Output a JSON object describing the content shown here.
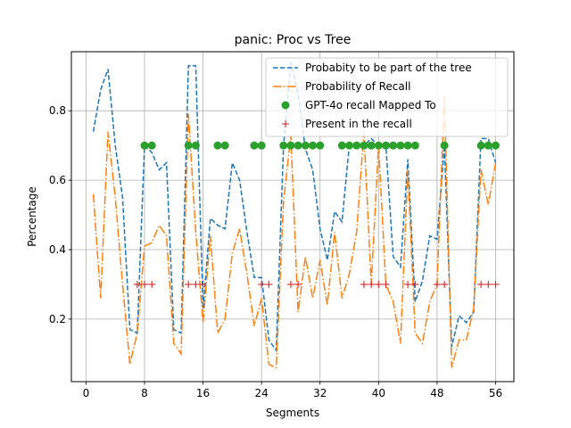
{
  "chart_data": {
    "type": "line",
    "title": "panic: Proc vs Tree",
    "xlabel": "Segments",
    "ylabel": "Percentage",
    "xlim": [
      -2,
      58.5
    ],
    "ylim": [
      0.02,
      0.97
    ],
    "xticks": [
      0,
      8,
      16,
      24,
      32,
      40,
      48,
      56
    ],
    "yticks": [
      0.2,
      0.4,
      0.6,
      0.8
    ],
    "grid": true,
    "legend_position": "upper-right",
    "series": [
      {
        "name": "Probabity to be part of the tree",
        "style": "dashed",
        "color": "#1f77b4",
        "x": [
          1,
          2,
          3,
          4,
          5,
          6,
          7,
          8,
          9,
          10,
          11,
          12,
          13,
          14,
          15,
          16,
          17,
          18,
          19,
          20,
          21,
          22,
          23,
          24,
          25,
          26,
          27,
          28,
          29,
          30,
          31,
          32,
          33,
          34,
          35,
          36,
          37,
          38,
          39,
          40,
          41,
          42,
          43,
          44,
          45,
          46,
          47,
          48,
          49,
          50,
          51,
          52,
          53,
          54,
          55,
          56
        ],
        "y": [
          0.74,
          0.86,
          0.92,
          0.7,
          0.55,
          0.17,
          0.16,
          0.7,
          0.68,
          0.63,
          0.65,
          0.17,
          0.16,
          0.93,
          0.93,
          0.23,
          0.49,
          0.47,
          0.46,
          0.65,
          0.6,
          0.45,
          0.32,
          0.32,
          0.14,
          0.11,
          0.7,
          0.94,
          0.85,
          0.69,
          0.63,
          0.46,
          0.37,
          0.51,
          0.48,
          0.7,
          0.7,
          0.7,
          0.72,
          0.7,
          0.7,
          0.38,
          0.35,
          0.66,
          0.25,
          0.31,
          0.44,
          0.43,
          0.7,
          0.12,
          0.21,
          0.19,
          0.22,
          0.72,
          0.72,
          0.65
        ]
      },
      {
        "name": "Probability of Recall",
        "style": "dashdot",
        "color": "#ff7f0e",
        "x": [
          1,
          2,
          3,
          4,
          5,
          6,
          7,
          8,
          9,
          10,
          11,
          12,
          13,
          14,
          15,
          16,
          17,
          18,
          19,
          20,
          21,
          22,
          23,
          24,
          25,
          26,
          27,
          28,
          29,
          30,
          31,
          32,
          33,
          34,
          35,
          36,
          37,
          38,
          39,
          40,
          41,
          42,
          43,
          44,
          45,
          46,
          47,
          48,
          49,
          50,
          51,
          52,
          53,
          54,
          55,
          56
        ],
        "y": [
          0.56,
          0.26,
          0.74,
          0.55,
          0.3,
          0.07,
          0.16,
          0.41,
          0.42,
          0.47,
          0.44,
          0.13,
          0.1,
          0.79,
          0.45,
          0.19,
          0.44,
          0.16,
          0.2,
          0.39,
          0.46,
          0.33,
          0.18,
          0.26,
          0.07,
          0.06,
          0.54,
          0.73,
          0.22,
          0.38,
          0.26,
          0.37,
          0.24,
          0.45,
          0.26,
          0.33,
          0.45,
          0.74,
          0.3,
          0.7,
          0.3,
          0.25,
          0.13,
          0.63,
          0.16,
          0.13,
          0.25,
          0.3,
          0.84,
          0.06,
          0.14,
          0.14,
          0.23,
          0.63,
          0.53,
          0.65
        ]
      },
      {
        "name": "GPT-4o recall Mapped To",
        "style": "marker-circle",
        "color": "#2ca02c",
        "x": [
          8,
          9,
          14,
          15,
          18,
          19,
          23,
          24,
          27,
          28,
          29,
          30,
          31,
          32,
          35,
          36,
          37,
          38,
          39,
          40,
          41,
          42,
          43,
          44,
          45,
          49,
          54,
          55,
          56
        ],
        "y": [
          0.7,
          0.7,
          0.7,
          0.7,
          0.7,
          0.7,
          0.7,
          0.7,
          0.7,
          0.7,
          0.7,
          0.7,
          0.7,
          0.7,
          0.7,
          0.7,
          0.7,
          0.7,
          0.7,
          0.7,
          0.7,
          0.7,
          0.7,
          0.7,
          0.7,
          0.7,
          0.7,
          0.7,
          0.7
        ]
      },
      {
        "name": "Present in the recall",
        "style": "marker-plus",
        "color": "#d62728",
        "x": [
          7,
          8,
          9,
          14,
          15,
          16,
          24,
          25,
          28,
          29,
          38,
          39,
          40,
          41,
          44,
          45,
          48,
          49,
          54,
          55,
          56
        ],
        "y": [
          0.3,
          0.3,
          0.3,
          0.3,
          0.3,
          0.3,
          0.3,
          0.3,
          0.3,
          0.3,
          0.3,
          0.3,
          0.3,
          0.3,
          0.3,
          0.3,
          0.3,
          0.3,
          0.3,
          0.3,
          0.3
        ]
      }
    ]
  }
}
